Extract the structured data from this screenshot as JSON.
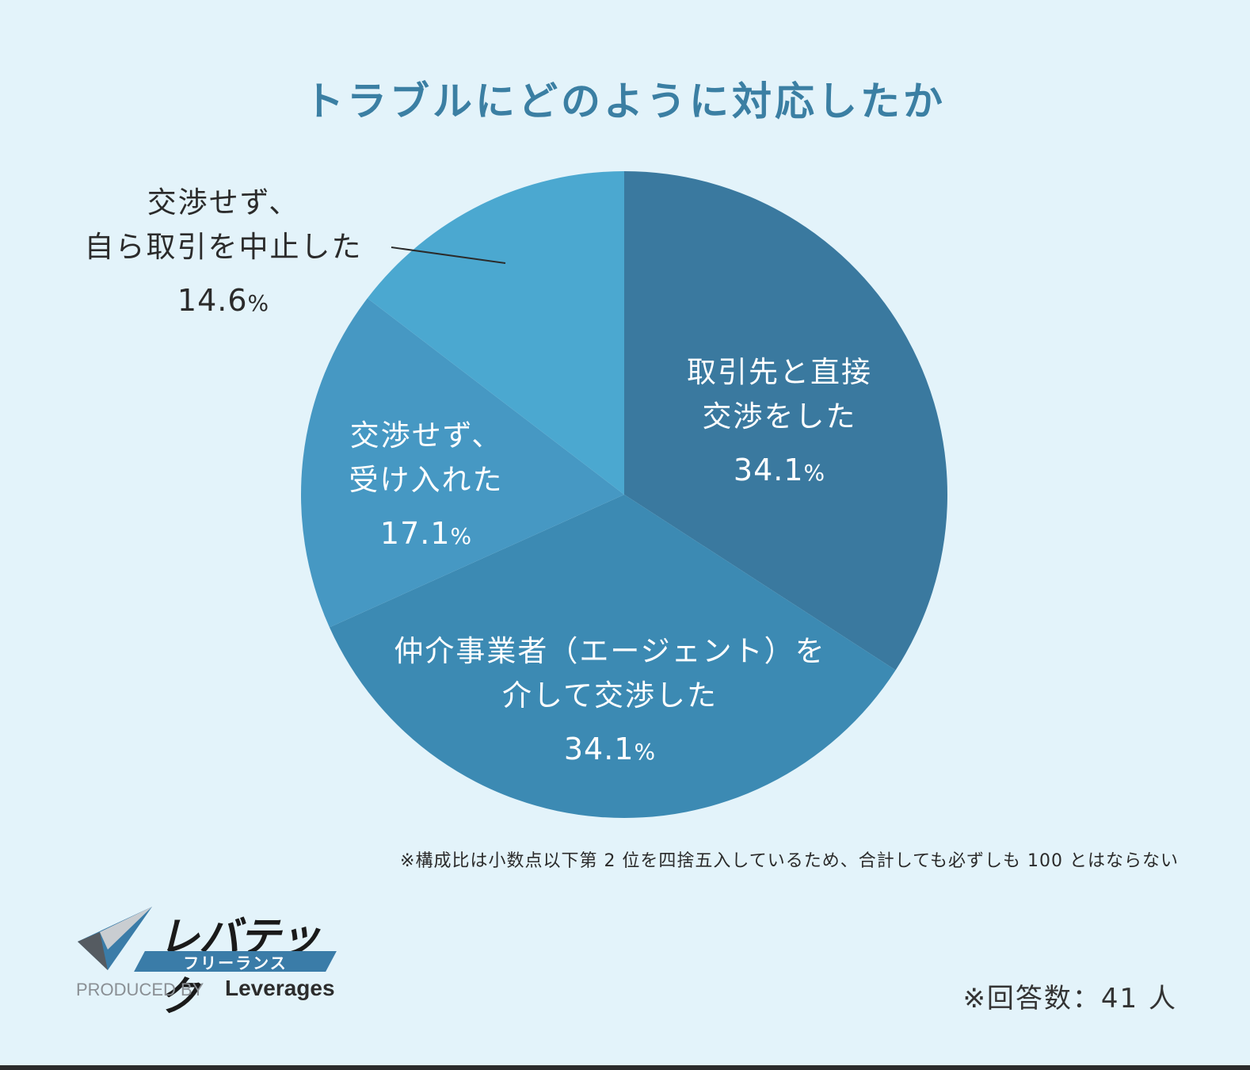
{
  "chart_data": {
    "type": "pie",
    "title": "トラブルにどのように対応したか",
    "slices": [
      {
        "label_lines": [
          "取引先と直接",
          "交渉をした"
        ],
        "value": 34.1,
        "value_text": "34.1",
        "color": "#3a799f"
      },
      {
        "label_lines": [
          "仲介事業者（エージェント）を",
          "介して交渉した"
        ],
        "value": 34.1,
        "value_text": "34.1",
        "color": "#3c8ab3"
      },
      {
        "label_lines": [
          "交渉せず、",
          "受け入れた"
        ],
        "value": 17.1,
        "value_text": "17.1",
        "color": "#4698c3"
      },
      {
        "label_lines": [
          "交渉せず、",
          "自ら取引を中止した"
        ],
        "value": 14.6,
        "value_text": "14.6",
        "color": "#4ba8d0"
      }
    ],
    "unit": "%"
  },
  "footnote": "※構成比は小数点以下第 2 位を四捨五入しているため、合計しても必ずしも 100 とはならない",
  "respondents": "※回答数：41 人",
  "logo": {
    "name": "レバテック",
    "sub": "フリーランス",
    "produced_by": "PRODUCED BY",
    "brand": "Leverages"
  },
  "colors": {
    "background": "#e3f3fa",
    "title": "#3b7fa3"
  }
}
